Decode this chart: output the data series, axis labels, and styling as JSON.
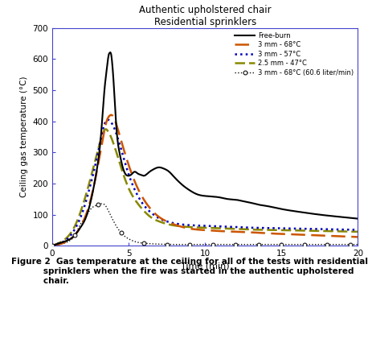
{
  "title_line1": "Authentic upholstered chair",
  "title_line2": "Residential sprinklers",
  "xlabel": "Time (min)",
  "ylabel": "Ceiling gas temperature (°C)",
  "xlim": [
    0,
    20
  ],
  "ylim": [
    0,
    700
  ],
  "xticks": [
    0,
    5,
    10,
    15,
    20
  ],
  "yticks": [
    0,
    100,
    200,
    300,
    400,
    500,
    600,
    700
  ],
  "legend_entries": [
    "Free-burn",
    "3 mm - 68°C",
    "3 mm - 57°C",
    "2.5 mm - 47°C",
    "3 mm - 68°C (60.6 liter/min)"
  ],
  "spine_color": "#4444cc",
  "free_burn_color": "#000000",
  "line2_color": "#cc5500",
  "line3_color": "#0000bb",
  "line4_color": "#888800",
  "line5_color": "#111111",
  "caption_line1": "Figure 2  Gas temperature at the ceiling for all of the tests with residential",
  "caption_line2": "           sprinklers when the fire was started in the authentic upholstered",
  "caption_line3": "           chair."
}
